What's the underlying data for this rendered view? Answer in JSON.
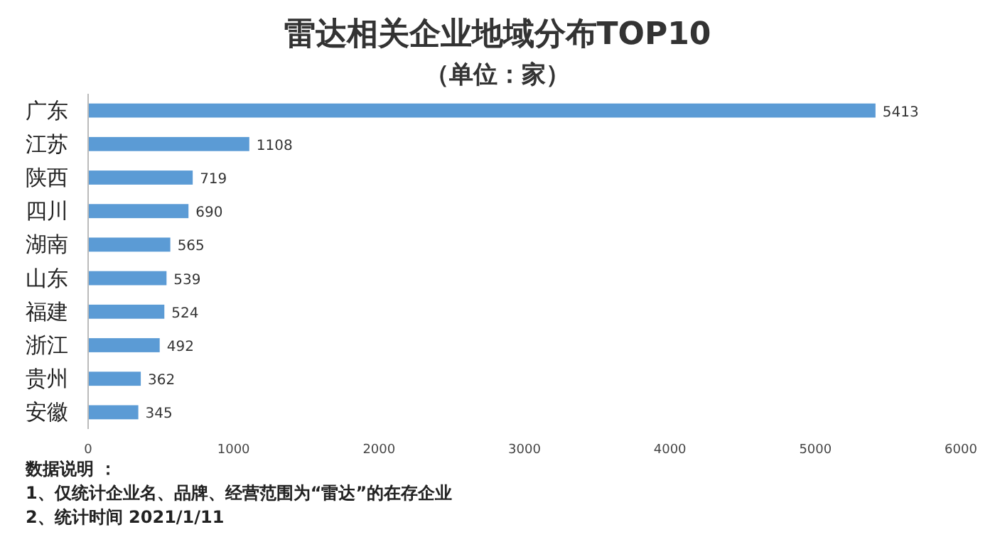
{
  "chart_data": {
    "type": "bar",
    "orientation": "horizontal",
    "title": "雷达相关企业地域分布TOP10",
    "subtitle": "（单位：家）",
    "categories": [
      "广东",
      "江苏",
      "陕西",
      "四川",
      "湖南",
      "山东",
      "福建",
      "浙江",
      "贵州",
      "安徽"
    ],
    "values": [
      5413,
      1108,
      719,
      690,
      565,
      539,
      524,
      492,
      362,
      345
    ],
    "color": "#5b9bd5",
    "data_labels": true,
    "xlim": [
      0,
      6000
    ],
    "xticks": [
      0,
      1000,
      2000,
      3000,
      4000,
      5000,
      6000
    ],
    "annotations": [
      "数据说明 ：",
      "1、仅统计企业名、品牌、经营范围为“雷达”的在存企业",
      "2、统计时间  2021/1/11"
    ]
  }
}
